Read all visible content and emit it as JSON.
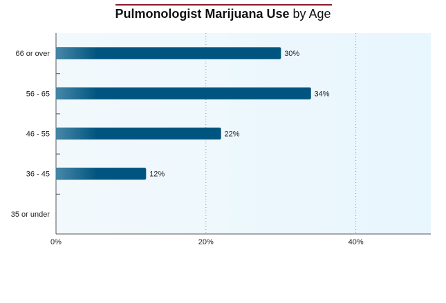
{
  "chart_data": {
    "type": "bar",
    "orientation": "horizontal",
    "title": "Pulmonologist Marijuana Use",
    "subtitle": "by Age",
    "categories": [
      "66 or over",
      "56 - 65",
      "46 - 55",
      "36 - 45",
      "35 or under"
    ],
    "values": [
      30,
      34,
      22,
      12,
      null
    ],
    "value_labels": [
      "30%",
      "34%",
      "22%",
      "12%",
      ""
    ],
    "xlim": [
      0,
      50
    ],
    "x_ticks": [
      0,
      20,
      40
    ],
    "x_tick_labels": [
      "0%",
      "20%",
      "40%"
    ],
    "xlabel": "",
    "ylabel": "",
    "grid": "vertical dotted",
    "legend": "none"
  },
  "colors": {
    "bar_dark": "#005580",
    "bar_light": "#a9cde0",
    "plot_bg_left": "#f2f9fd",
    "plot_bg_right": "#e8f6fd",
    "accent_rule": "#8b1a2b",
    "axis": "#555555",
    "grid": "#7aa0a0"
  }
}
